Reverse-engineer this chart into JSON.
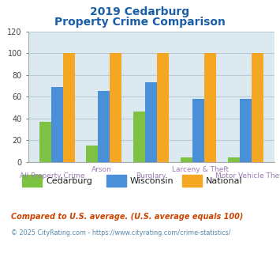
{
  "title_line1": "2019 Cedarburg",
  "title_line2": "Property Crime Comparison",
  "categories": [
    "All Property Crime",
    "Arson",
    "Burglary",
    "Larceny & Theft",
    "Motor Vehicle Theft"
  ],
  "series": {
    "Cedarburg": [
      37,
      15,
      46,
      4,
      4
    ],
    "Wisconsin": [
      69,
      65,
      73,
      58,
      58
    ],
    "National": [
      100,
      100,
      100,
      100,
      100
    ]
  },
  "bar_colors": {
    "Cedarburg": "#7dc242",
    "Wisconsin": "#4a90d9",
    "National": "#f5a623"
  },
  "ylim": [
    0,
    120
  ],
  "yticks": [
    0,
    20,
    40,
    60,
    80,
    100,
    120
  ],
  "title_color": "#1a5fa8",
  "xlabel_upper_color": "#9b7bb5",
  "xlabel_lower_color": "#9b7bb5",
  "grid_color": "#b8cdd8",
  "plot_bg_color": "#dce9f0",
  "legend_text_color": "#222222",
  "footnote1": "Compared to U.S. average. (U.S. average equals 100)",
  "footnote2": "© 2025 CityRating.com - https://www.cityrating.com/crime-statistics/",
  "footnote1_color": "#cc4400",
  "footnote2_color": "#5588aa",
  "upper_label_indices": [
    1,
    3
  ],
  "upper_labels": [
    "Arson",
    "Larceny & Theft"
  ],
  "lower_label_indices": [
    0,
    2,
    4
  ],
  "lower_labels": [
    "All Property Crime",
    "Burglary",
    "Motor Vehicle Theft"
  ]
}
